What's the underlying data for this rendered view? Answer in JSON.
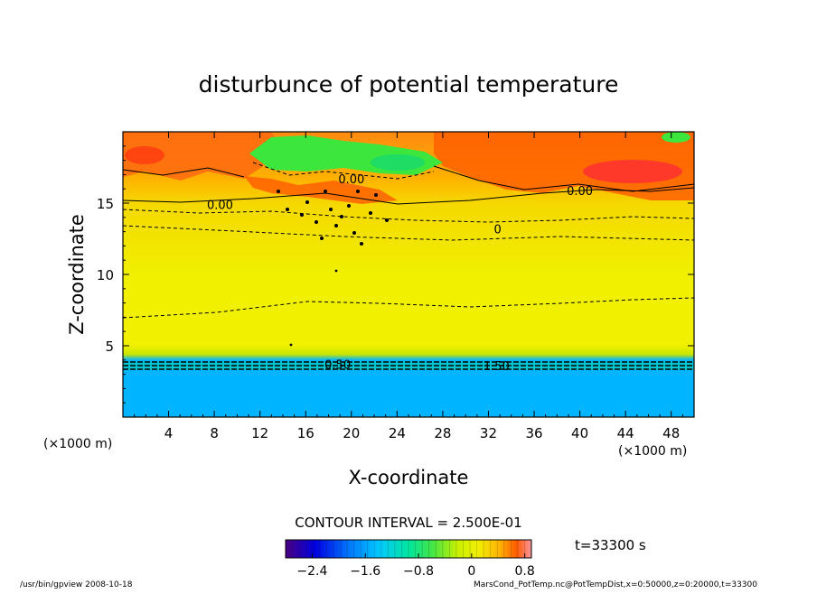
{
  "chart_data": {
    "type": "heatmap",
    "title": "disturbunce of potential temperature",
    "xlabel": "X-coordinate",
    "ylabel": "Z-coordinate",
    "x_unit_left": "(×1000 m)",
    "x_unit_right": "(×1000 m)",
    "xlim": [
      0,
      50
    ],
    "ylim": [
      0,
      20
    ],
    "x_ticks": [
      4,
      8,
      12,
      16,
      20,
      24,
      28,
      32,
      36,
      40,
      44,
      48
    ],
    "y_ticks": [
      5,
      10,
      15
    ],
    "contour_interval_text": "CONTOUR INTERVAL = 2.500E-01",
    "time_text": "t=33300 s",
    "contour_labels": [
      {
        "text": "0.00",
        "x": 8.5,
        "z": 14.9
      },
      {
        "text": "0.00",
        "x": 40.0,
        "z": 15.9
      },
      {
        "text": "0.00",
        "x": 20.0,
        "z": 16.7
      },
      {
        "text": "0.50",
        "x": 18.8,
        "z": 3.7
      },
      {
        "text": "1.50",
        "x": 32.7,
        "z": 3.6
      },
      {
        "text": "0",
        "x": 32.8,
        "z": 13.2
      }
    ],
    "colorbar": {
      "min": -2.8,
      "max": 0.9,
      "tick_labels": [
        "−2.4",
        "−1.6",
        "−0.8",
        "0",
        "0.8"
      ],
      "tick_values": [
        -2.4,
        -1.6,
        -0.8,
        0,
        0.8
      ]
    },
    "colors": {
      "lower_layer": "#00b4ff",
      "main_field": "#f0f000",
      "upper_warm": "#ff5a00",
      "upper_cold": "#3ce63c"
    }
  },
  "footer": {
    "left": "/usr/bin/gpview   2008-10-18",
    "right": "MarsCond_PotTemp.nc@PotTempDist,x=0:50000,z=0:20000,t=33300"
  }
}
